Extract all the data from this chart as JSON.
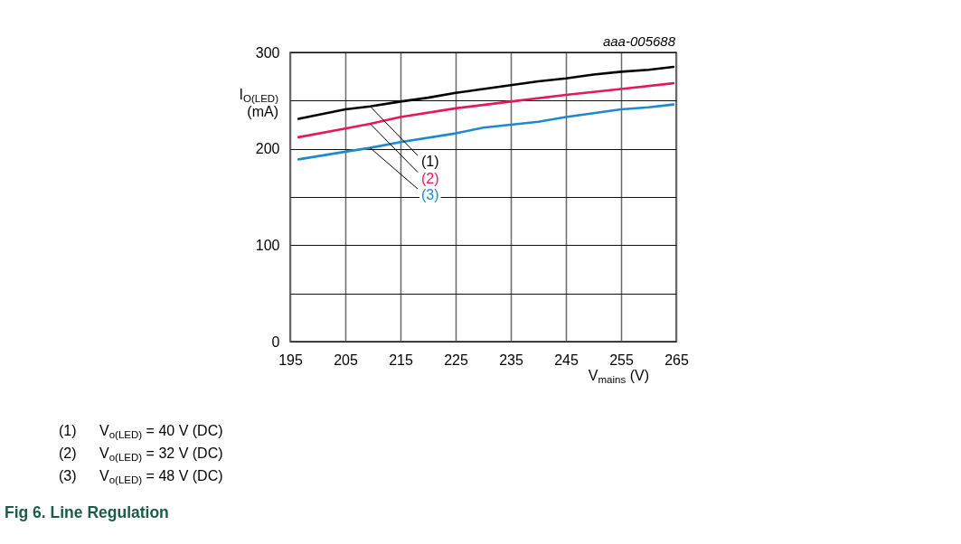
{
  "chart_data": {
    "type": "line",
    "title": "Fig 6. Line Regulation",
    "xlabel": "V$_{mains}$ (V)",
    "ylabel": "I$_{O(LED)}$ (mA)",
    "annotations": [
      "aaa-005688",
      "(1) V$_{o(LED)}$ = 40 V (DC)",
      "(2) V$_{o(LED)}$ = 32 V (DC)",
      "(3) V$_{o(LED)}$ = 48 V (DC)"
    ],
    "series": [
      {
        "name": "(1)",
        "color": "#000000",
        "x": [
          196.5,
          205,
          209.5,
          215,
          220,
          225,
          230,
          235,
          240,
          245,
          250,
          255,
          260,
          264.5
        ],
        "values": [
          231,
          241,
          244,
          249,
          253,
          258,
          262,
          266,
          270,
          273,
          277,
          280,
          282,
          285
        ]
      },
      {
        "name": "(2)",
        "color": "#e8175d",
        "x": [
          196.5,
          205,
          209.5,
          215,
          225,
          235,
          245,
          255,
          264.5
        ],
        "values": [
          212,
          221,
          226,
          233,
          242,
          249,
          256,
          262,
          268
        ]
      },
      {
        "name": "(3)",
        "color": "#1b8ad1",
        "x": [
          196.5,
          205,
          209.5,
          215,
          225,
          230,
          235,
          240,
          245,
          250,
          255,
          260,
          264.5
        ],
        "values": [
          189,
          197,
          201,
          207,
          216,
          222,
          225,
          228,
          233,
          237,
          241,
          243,
          246
        ]
      }
    ],
    "xlim": [
      195,
      265
    ],
    "xticks": [
      195,
      205,
      215,
      225,
      235,
      245,
      255,
      265
    ],
    "ylim": [
      0,
      300
    ],
    "yticks": [
      0,
      {
        "value": 50,
        "label": null
      },
      100,
      {
        "value": 150,
        "label": null
      },
      200,
      {
        "value": 250,
        "label": null
      },
      300
    ],
    "grid": true,
    "line_style": "solid"
  }
}
